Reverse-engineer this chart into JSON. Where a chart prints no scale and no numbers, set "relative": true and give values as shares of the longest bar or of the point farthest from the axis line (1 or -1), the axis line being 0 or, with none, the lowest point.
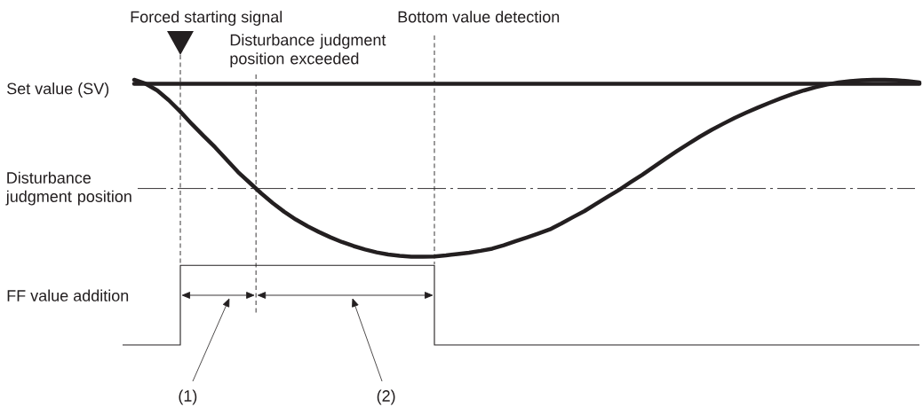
{
  "chart_data": {
    "type": "line",
    "relative": true,
    "categories": [
      null,
      null,
      null,
      null,
      null,
      null,
      null,
      null,
      null,
      null,
      null,
      null,
      null,
      null,
      null,
      null,
      null,
      null,
      null,
      null,
      null,
      null,
      null,
      null,
      null,
      null,
      null,
      null,
      null,
      null,
      null,
      null,
      null,
      null,
      null,
      null,
      null,
      null,
      null,
      null,
      null,
      null,
      null,
      null,
      null,
      null,
      null,
      null,
      null,
      null,
      null,
      null,
      null,
      null,
      null,
      null,
      null,
      null,
      null,
      null,
      null,
      null,
      null,
      null,
      null,
      null,
      null,
      null,
      null,
      null
    ],
    "series": [
      {
        "color": "#231f20",
        "values": [
          null,
          1.0,
          0.985,
          0.96,
          0.923,
          0.88,
          0.833,
          0.789,
          0.746,
          0.699,
          0.652,
          0.612,
          0.572,
          0.535,
          0.502,
          0.473,
          0.448,
          0.426,
          0.406,
          0.388,
          0.373,
          0.36,
          0.349,
          0.341,
          0.336,
          0.333,
          0.333,
          0.334,
          0.338,
          0.343,
          0.348,
          0.355,
          0.363,
          0.376,
          0.391,
          0.405,
          0.42,
          0.436,
          0.458,
          0.482,
          0.505,
          0.532,
          0.559,
          0.585,
          0.614,
          0.642,
          0.672,
          0.702,
          0.731,
          0.759,
          0.786,
          0.811,
          0.834,
          0.856,
          0.876,
          0.895,
          0.913,
          0.93,
          0.946,
          0.96,
          0.972,
          0.982,
          0.99,
          0.995,
          0.998,
          1.0,
          1.0,
          0.998,
          0.995,
          0.99
        ]
      },
      {
        "name": "Set value (SV)",
        "color": "#231f20",
        "values": [
          null,
          0.985,
          0.985,
          0.985,
          0.985,
          0.985,
          0.985,
          0.985,
          0.985,
          0.985,
          0.985,
          0.985,
          0.985,
          0.985,
          0.985,
          0.985,
          0.985,
          0.985,
          0.985,
          0.985,
          0.985,
          0.985,
          0.985,
          0.985,
          0.985,
          0.985,
          0.985,
          0.985,
          0.985,
          0.985,
          0.985,
          0.985,
          0.985,
          0.985,
          0.985,
          0.985,
          0.985,
          0.985,
          0.985,
          0.985,
          0.985,
          0.985,
          0.985,
          0.985,
          0.985,
          0.985,
          0.985,
          0.985,
          0.985,
          0.985,
          0.985,
          0.985,
          0.985,
          0.985,
          0.985,
          0.985,
          0.985,
          0.985,
          0.985,
          0.985,
          0.985,
          0.985,
          0.985,
          0.985,
          0.985,
          0.985,
          0.985,
          0.985,
          0.985,
          0.985
        ]
      },
      {
        "name": "FF value addition",
        "type": "step",
        "color": "#231f20",
        "values": [
          0,
          0,
          0,
          0,
          0,
          0.3,
          0.3,
          0.3,
          0.3,
          0.3,
          0.3,
          0.3,
          0.3,
          0.3,
          0.3,
          0.3,
          0.3,
          0.3,
          0.3,
          0.3,
          0.3,
          0.3,
          0.3,
          0.3,
          0.3,
          0.3,
          0.3,
          0,
          0,
          0,
          0,
          0,
          0,
          0,
          0,
          0,
          0,
          0,
          0,
          0,
          0,
          0,
          0,
          0,
          0,
          0,
          0,
          0,
          0,
          0,
          0,
          0,
          0,
          0,
          0,
          0,
          0,
          0,
          0,
          0,
          0,
          0,
          0,
          0,
          0,
          0,
          0,
          0,
          0,
          0
        ]
      }
    ],
    "ref_lines": [
      {
        "axis": "y",
        "value": 0.59,
        "label": "Disturbance judgment position",
        "line_style": "dashdot"
      }
    ],
    "annotations": [
      "Forced starting signal",
      "Bottom value detection",
      "Disturbance judgment position exceeded",
      "(1)",
      "(2)"
    ]
  }
}
